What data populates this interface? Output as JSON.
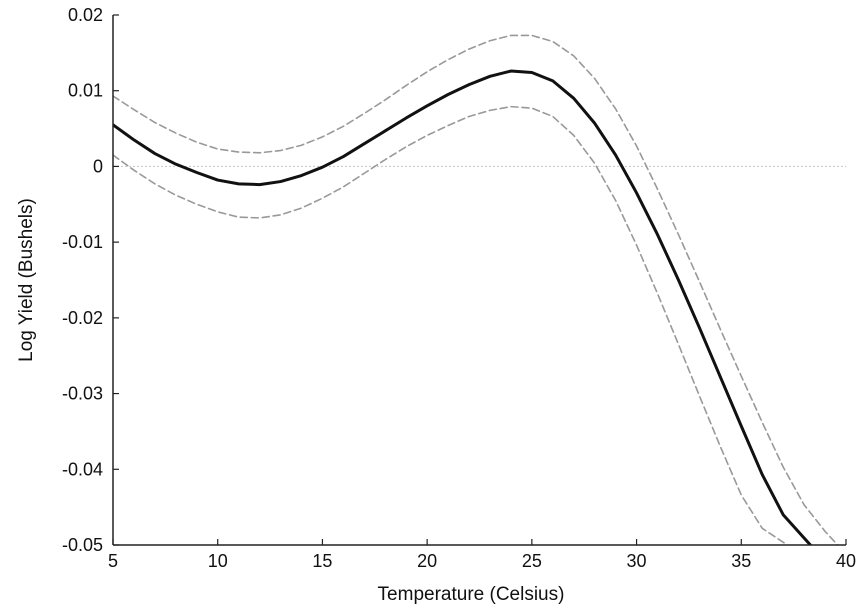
{
  "chart_data": {
    "type": "line",
    "title": "",
    "xlabel": "Temperature (Celsius)",
    "ylabel": "Log Yield (Bushels)",
    "xlim": [
      5,
      40
    ],
    "ylim": [
      -0.05,
      0.02
    ],
    "x_ticks": [
      5,
      10,
      15,
      20,
      25,
      30,
      35,
      40
    ],
    "y_ticks": [
      0.02,
      0.01,
      0,
      -0.01,
      -0.02,
      -0.03,
      -0.04,
      -0.05
    ],
    "x_tick_labels": [
      "5",
      "10",
      "15",
      "20",
      "25",
      "30",
      "35",
      "40"
    ],
    "y_tick_labels": [
      "0.02",
      "0.01",
      "0",
      "-0.01",
      "-0.02",
      "-0.03",
      "-0.04",
      "-0.05"
    ],
    "reference_line_y": 0,
    "grid": false,
    "colors": {
      "estimate": "#111111",
      "bounds": "#999999",
      "reference": "#cccccc"
    },
    "series": [
      {
        "role": "estimate",
        "x": [
          5,
          6,
          7,
          8,
          9,
          10,
          11,
          12,
          13,
          14,
          15,
          16,
          17,
          18,
          19,
          20,
          21,
          22,
          23,
          24,
          25,
          26,
          27,
          28,
          29,
          30,
          31,
          32,
          33,
          34,
          35,
          36,
          37,
          38.3
        ],
        "values": [
          0.0055,
          0.0035,
          0.0017,
          0.0003,
          -0.0008,
          -0.0018,
          -0.0023,
          -0.0024,
          -0.002,
          -0.0012,
          -0.0001,
          0.0013,
          0.003,
          0.0047,
          0.0064,
          0.008,
          0.0095,
          0.0108,
          0.0119,
          0.0126,
          0.0124,
          0.0113,
          0.009,
          0.0057,
          0.0015,
          -0.0035,
          -0.009,
          -0.015,
          -0.0213,
          -0.0278,
          -0.0343,
          -0.0407,
          -0.046,
          -0.05
        ]
      },
      {
        "role": "upper-bound",
        "x": [
          5,
          6,
          7,
          8,
          9,
          10,
          11,
          12,
          13,
          14,
          15,
          16,
          17,
          18,
          19,
          20,
          21,
          22,
          23,
          24,
          25,
          26,
          27,
          28,
          29,
          30,
          31,
          32,
          33,
          34,
          35,
          36,
          37,
          38,
          39,
          39.6
        ],
        "values": [
          0.0093,
          0.0075,
          0.0058,
          0.0044,
          0.0032,
          0.0023,
          0.0019,
          0.0018,
          0.0021,
          0.0028,
          0.0039,
          0.0053,
          0.007,
          0.0088,
          0.0107,
          0.0125,
          0.0141,
          0.0155,
          0.0166,
          0.0173,
          0.0173,
          0.0165,
          0.0146,
          0.0116,
          0.0076,
          0.0027,
          -0.003,
          -0.009,
          -0.0152,
          -0.0215,
          -0.0277,
          -0.0338,
          -0.0397,
          -0.0447,
          -0.0482,
          -0.05
        ]
      },
      {
        "role": "lower-bound",
        "x": [
          5,
          6,
          7,
          8,
          9,
          10,
          11,
          12,
          13,
          14,
          15,
          16,
          17,
          18,
          19,
          20,
          21,
          22,
          23,
          24,
          25,
          26,
          27,
          28,
          29,
          30,
          31,
          32,
          33,
          34,
          35,
          36,
          37.2
        ],
        "values": [
          0.0015,
          -0.0005,
          -0.0023,
          -0.0038,
          -0.005,
          -0.006,
          -0.0067,
          -0.0068,
          -0.0064,
          -0.0055,
          -0.0042,
          -0.0027,
          -0.0009,
          0.0009,
          0.0026,
          0.0041,
          0.0054,
          0.0066,
          0.0074,
          0.0079,
          0.0077,
          0.0066,
          0.0041,
          0.0004,
          -0.0045,
          -0.0104,
          -0.0168,
          -0.0235,
          -0.0303,
          -0.037,
          -0.0434,
          -0.0478,
          -0.05
        ]
      }
    ]
  }
}
